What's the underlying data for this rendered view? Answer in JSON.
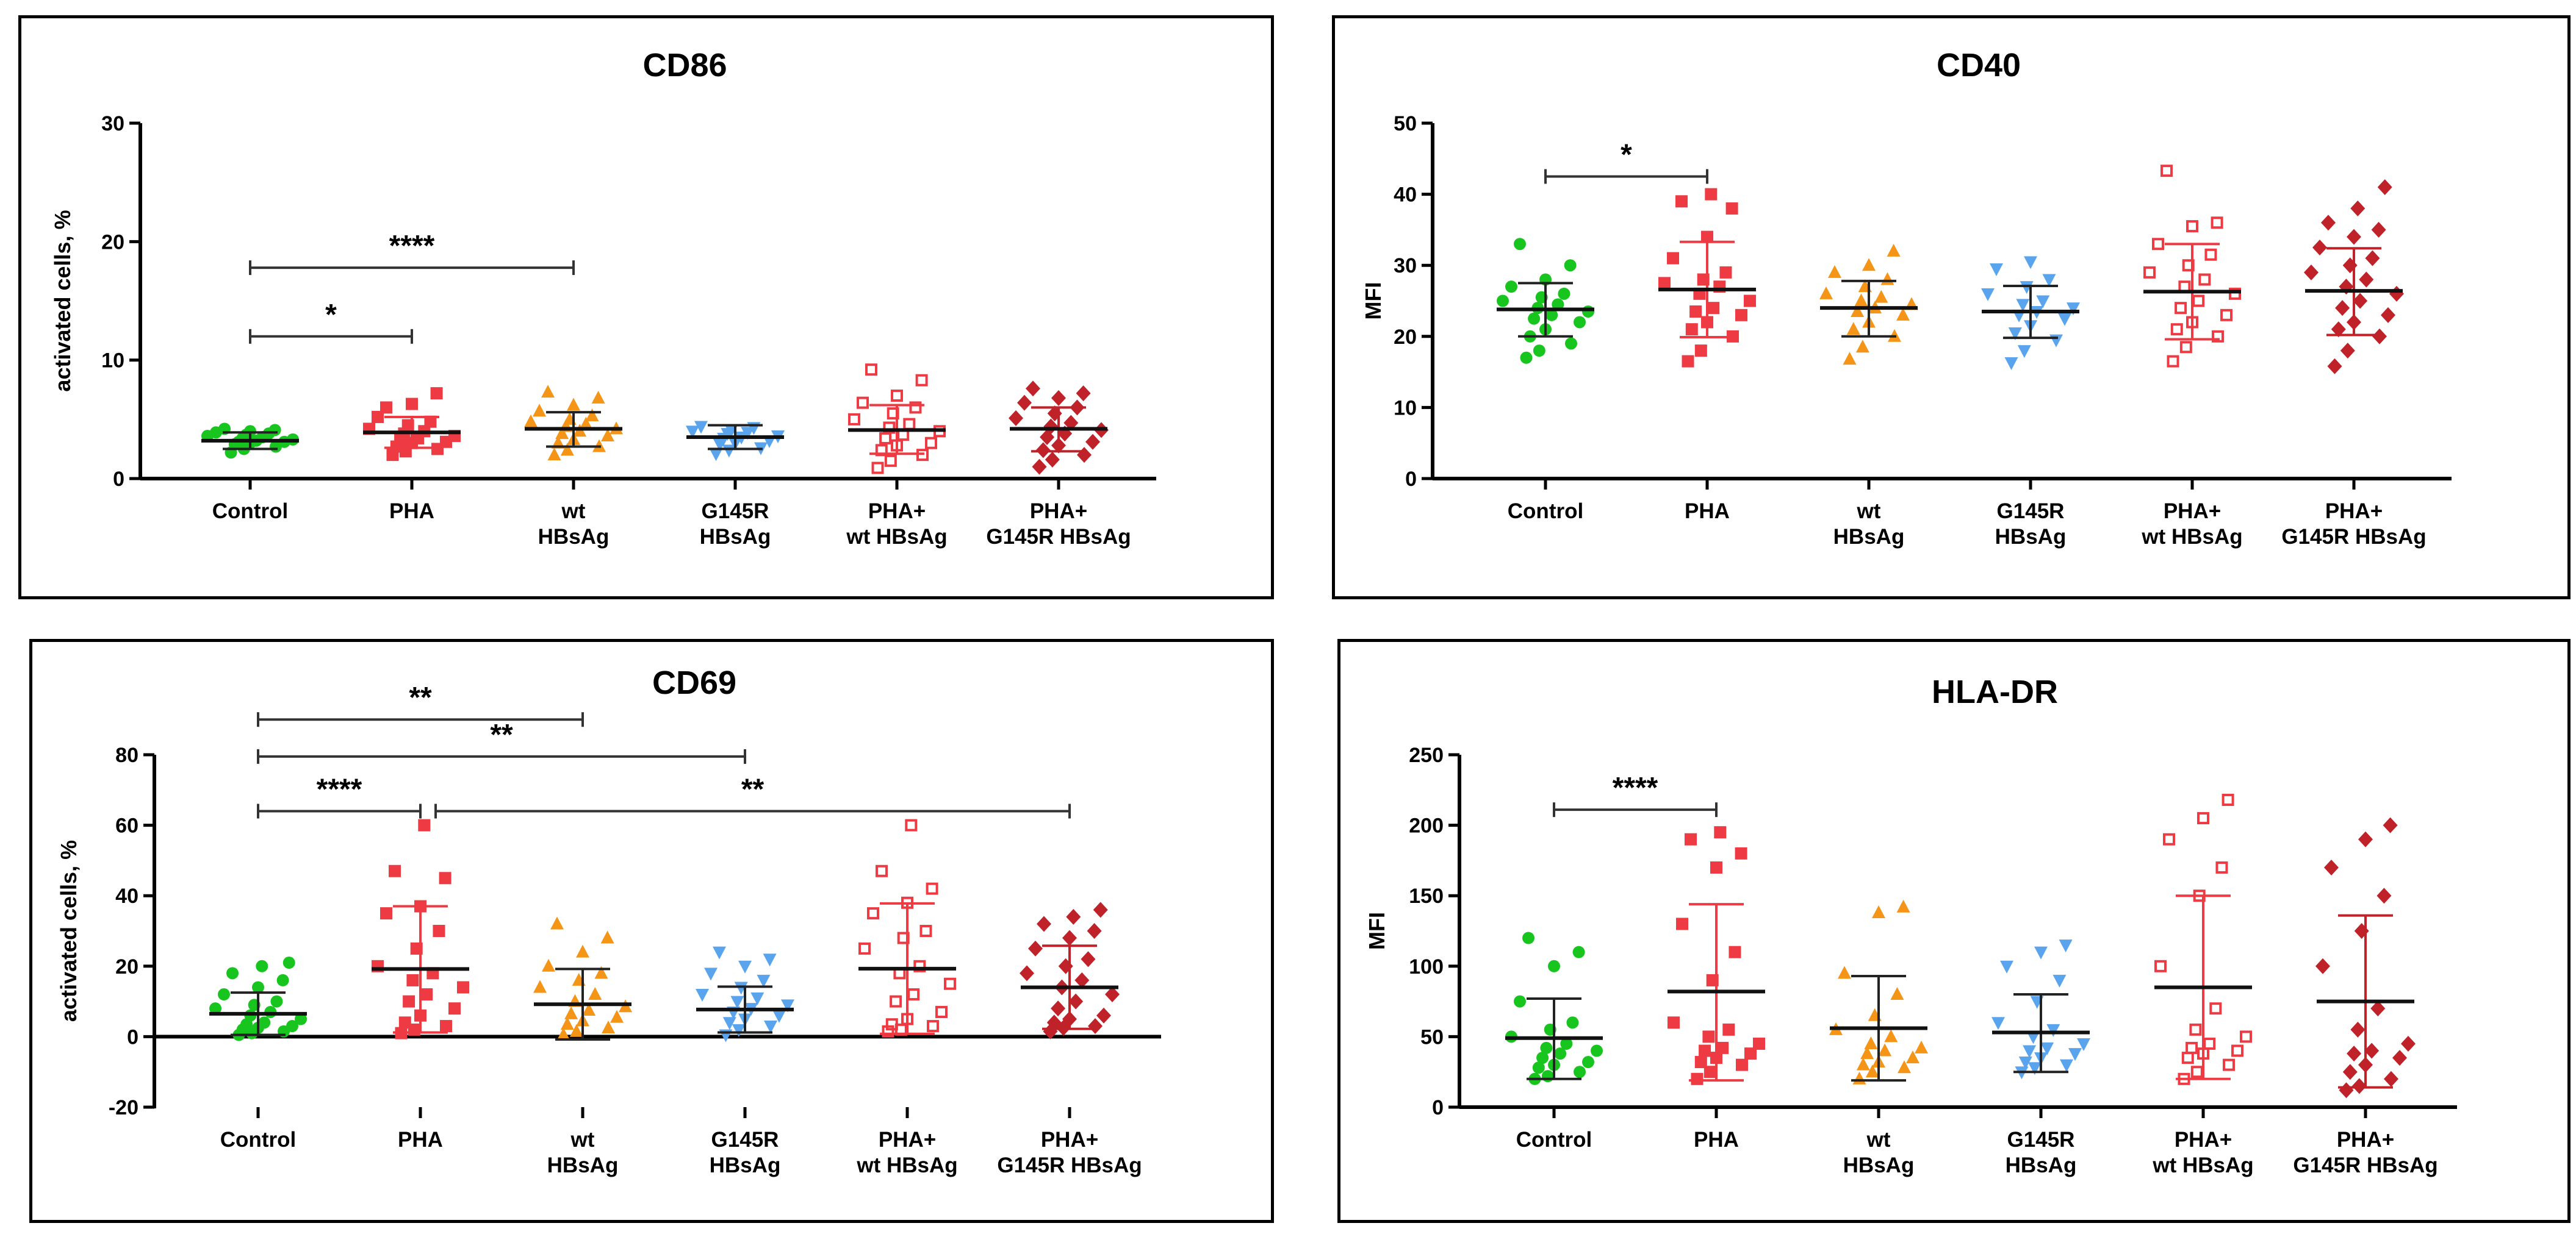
{
  "categories": [
    [
      "Control"
    ],
    [
      "PHA"
    ],
    [
      "wt",
      "HBsAg"
    ],
    [
      "G145R",
      "HBsAg"
    ],
    [
      "PHA+",
      "wt HBsAg"
    ],
    [
      "PHA+",
      "G145R HBsAg"
    ]
  ],
  "group_styles": [
    {
      "color": "#18c51e",
      "marker": "circle"
    },
    {
      "color": "#ee3b43",
      "marker": "square"
    },
    {
      "color": "#f59518",
      "marker": "triangle-up"
    },
    {
      "color": "#5aa4ee",
      "marker": "triangle-down"
    },
    {
      "color": "#ee3b43",
      "marker": "square-open"
    },
    {
      "color": "#c0222a",
      "marker": "diamond"
    }
  ],
  "chart_data": [
    {
      "type": "scatter",
      "title": "CD86",
      "ylabel": "activated cells, %",
      "ylim": [
        0,
        30
      ],
      "yticks": [
        0,
        10,
        20,
        30
      ],
      "series": [
        {
          "name": "Control",
          "points": [
            2.2,
            2.5,
            2.7,
            2.9,
            3.0,
            3.1,
            3.1,
            3.2,
            3.3,
            3.4,
            3.5,
            3.6,
            3.7,
            3.8,
            3.9,
            4.0,
            4.1,
            4.2
          ],
          "mean": 3.2,
          "sd_low": 2.5,
          "sd_high": 3.9
        },
        {
          "name": "PHA",
          "points": [
            2.0,
            2.3,
            2.5,
            2.7,
            3.0,
            3.1,
            3.3,
            3.4,
            3.6,
            3.8,
            4.0,
            4.2,
            4.5,
            4.8,
            5.2,
            6.3,
            7.2,
            6.0
          ],
          "mean": 3.9,
          "sd_low": 2.6,
          "sd_high": 5.2
        },
        {
          "name": "wt HBsAg",
          "points": [
            2.0,
            2.4,
            2.7,
            3.0,
            3.3,
            3.6,
            3.8,
            4.0,
            4.2,
            4.4,
            4.6,
            4.8,
            5.0,
            5.3,
            5.7,
            6.2,
            6.8,
            7.3
          ],
          "mean": 4.2,
          "sd_low": 2.7,
          "sd_high": 5.6
        },
        {
          "name": "G145R HBsAg",
          "points": [
            2.1,
            2.4,
            2.6,
            2.9,
            3.0,
            3.2,
            3.4,
            3.5,
            3.6,
            3.8,
            3.9,
            4.0,
            4.1,
            4.3,
            4.4
          ],
          "mean": 3.5,
          "sd_low": 2.5,
          "sd_high": 4.5
        },
        {
          "name": "PHA+ wt HBsAg",
          "points": [
            0.9,
            1.5,
            2.0,
            2.4,
            2.8,
            3.0,
            3.4,
            3.7,
            4.0,
            4.3,
            4.6,
            5.0,
            5.5,
            6.0,
            6.4,
            7.0,
            8.3,
            9.2
          ],
          "mean": 4.1,
          "sd_low": 2.1,
          "sd_high": 6.2
        },
        {
          "name": "PHA+ G145R HBsAg",
          "points": [
            1.0,
            1.6,
            2.0,
            2.4,
            2.8,
            3.1,
            3.5,
            3.8,
            4.1,
            4.4,
            4.7,
            5.1,
            5.5,
            6.0,
            6.4,
            6.8,
            7.2,
            7.6
          ],
          "mean": 4.2,
          "sd_low": 2.3,
          "sd_high": 6.0
        }
      ],
      "brackets": [
        {
          "from": 0,
          "to": 1,
          "label": "*",
          "y": 12
        },
        {
          "from": 0,
          "to": 2,
          "label": "****",
          "y": 17.8
        }
      ]
    },
    {
      "type": "scatter",
      "title": "CD40",
      "ylabel": "MFI",
      "ylim": [
        0,
        50
      ],
      "yticks": [
        0,
        10,
        20,
        30,
        40,
        50
      ],
      "series": [
        {
          "name": "Control",
          "points": [
            17,
            18,
            19,
            20,
            21,
            22,
            22.5,
            23,
            23.5,
            24,
            24.5,
            25,
            25.5,
            26,
            27,
            28,
            30,
            33
          ],
          "mean": 23.8,
          "sd_low": 20.0,
          "sd_high": 27.5
        },
        {
          "name": "PHA",
          "points": [
            16.5,
            18,
            20,
            21,
            22,
            23,
            23.5,
            24,
            25,
            26,
            27,
            27.5,
            28,
            29,
            31,
            34,
            38,
            39,
            40
          ],
          "mean": 26.6,
          "sd_low": 19.9,
          "sd_high": 33.3
        },
        {
          "name": "wt HBsAg",
          "points": [
            16.8,
            18.5,
            20,
            21,
            22,
            23,
            23.5,
            24,
            24.5,
            25,
            25.5,
            26,
            27,
            28,
            29,
            30,
            32
          ],
          "mean": 24.0,
          "sd_low": 20.0,
          "sd_high": 27.8
        },
        {
          "name": "G145R HBsAg",
          "points": [
            16.3,
            18,
            19.5,
            20.5,
            21.5,
            22.5,
            23,
            23.5,
            24,
            24.5,
            25,
            26,
            27,
            28,
            29.5,
            30.5
          ],
          "mean": 23.5,
          "sd_low": 19.8,
          "sd_high": 27.1
        },
        {
          "name": "PHA+ wt HBsAg",
          "points": [
            16.5,
            18.5,
            20,
            21,
            22,
            23,
            24,
            25,
            26,
            27,
            28,
            29,
            30,
            31.5,
            33,
            35.5,
            36,
            43.3
          ],
          "mean": 26.3,
          "sd_low": 19.6,
          "sd_high": 33.0
        },
        {
          "name": "PHA+ G145R HBsAg",
          "points": [
            15.8,
            18,
            20,
            21,
            22,
            23,
            24,
            25,
            26,
            27,
            28,
            29,
            30,
            31,
            32.5,
            34,
            35,
            36,
            38,
            41
          ],
          "mean": 26.4,
          "sd_low": 20.2,
          "sd_high": 32.4
        }
      ],
      "brackets": [
        {
          "from": 0,
          "to": 1,
          "label": "*",
          "y": 42.5
        }
      ]
    },
    {
      "type": "scatter",
      "title": "CD69",
      "ylabel": "activated cells, %",
      "ylim": [
        -20,
        80
      ],
      "yticks": [
        -20,
        0,
        20,
        40,
        60,
        80
      ],
      "series": [
        {
          "name": "Control",
          "points": [
            0.5,
            1,
            1.5,
            2,
            2.5,
            3,
            3.5,
            4,
            5,
            6,
            7,
            8,
            9,
            10,
            12,
            14,
            16,
            18,
            20,
            21
          ],
          "mean": 6.5,
          "sd_low": 0.5,
          "sd_high": 12.5
        },
        {
          "name": "PHA",
          "points": [
            1,
            2,
            3,
            4,
            6,
            8,
            10,
            12,
            14,
            16,
            18,
            20,
            25,
            30,
            35,
            37,
            45,
            47,
            60
          ],
          "mean": 19.2,
          "sd_low": 1.2,
          "sd_high": 37.0
        },
        {
          "name": "wt HBsAg",
          "points": [
            0.5,
            1.5,
            2.5,
            3.5,
            4.5,
            5.5,
            6.5,
            7.5,
            8.5,
            10,
            12,
            14,
            16,
            18,
            20,
            24,
            28,
            32
          ],
          "mean": 9.2,
          "sd_low": -0.8,
          "sd_high": 19.2
        },
        {
          "name": "G145R HBsAg",
          "points": [
            0.5,
            2,
            3,
            4,
            5,
            6,
            7,
            8,
            9,
            10,
            11,
            12,
            14,
            16,
            18,
            20,
            22,
            24
          ],
          "mean": 7.7,
          "sd_low": 1.2,
          "sd_high": 14.2
        },
        {
          "name": "PHA+ wt HBsAg",
          "points": [
            1.5,
            2,
            3,
            3.5,
            5,
            7,
            10,
            12,
            15,
            18,
            20,
            25,
            28,
            30,
            35,
            38,
            42,
            47,
            60
          ],
          "mean": 19.3,
          "sd_low": 0.8,
          "sd_high": 37.8
        },
        {
          "name": "PHA+ G145R HBsAg",
          "points": [
            1.5,
            2.5,
            3,
            4,
            5,
            6,
            8,
            10,
            12,
            14,
            16,
            18,
            20,
            22,
            25,
            28,
            30,
            32,
            34,
            36
          ],
          "mean": 14.0,
          "sd_low": 2.2,
          "sd_high": 25.8
        }
      ],
      "brackets": [
        {
          "from": 0,
          "to": 1,
          "label": "****",
          "y": 64
        },
        {
          "from": 1,
          "to": 5,
          "label": "**",
          "y": 64
        },
        {
          "from": 0,
          "to": 3,
          "label": "**",
          "y": 79.5
        },
        {
          "from": 0,
          "to": 2,
          "label": "**",
          "y": 90
        }
      ]
    },
    {
      "type": "scatter",
      "title": "HLA-DR",
      "ylabel": "MFI",
      "ylim": [
        0,
        250
      ],
      "yticks": [
        0,
        50,
        100,
        150,
        200,
        250
      ],
      "series": [
        {
          "name": "Control",
          "points": [
            20,
            22,
            25,
            28,
            30,
            32,
            35,
            38,
            40,
            42,
            45,
            50,
            55,
            60,
            75,
            100,
            110,
            120
          ],
          "mean": 49,
          "sd_low": 20,
          "sd_high": 77
        },
        {
          "name": "PHA",
          "points": [
            20,
            25,
            30,
            32,
            35,
            38,
            40,
            42,
            45,
            50,
            55,
            60,
            90,
            110,
            130,
            170,
            180,
            190,
            195
          ],
          "mean": 82,
          "sd_low": 19,
          "sd_high": 144
        },
        {
          "name": "wt HBsAg",
          "points": [
            20,
            25,
            28,
            30,
            32,
            35,
            38,
            40,
            42,
            45,
            50,
            55,
            65,
            80,
            95,
            138,
            142
          ],
          "mean": 56,
          "sd_low": 19,
          "sd_high": 93
        },
        {
          "name": "G145R HBsAg",
          "points": [
            25,
            28,
            30,
            32,
            35,
            38,
            40,
            42,
            45,
            50,
            55,
            60,
            75,
            90,
            100,
            110,
            115
          ],
          "mean": 53,
          "sd_low": 25,
          "sd_high": 80
        },
        {
          "name": "PHA+ wt HBsAg",
          "points": [
            20,
            25,
            30,
            35,
            38,
            40,
            42,
            45,
            50,
            55,
            70,
            100,
            150,
            170,
            190,
            205,
            218
          ],
          "mean": 85,
          "sd_low": 20,
          "sd_high": 150
        },
        {
          "name": "PHA+ G145R HBsAg",
          "points": [
            12,
            15,
            20,
            25,
            30,
            35,
            38,
            40,
            45,
            55,
            70,
            100,
            125,
            150,
            170,
            190,
            200
          ],
          "mean": 75,
          "sd_low": 14,
          "sd_high": 136
        }
      ],
      "brackets": [
        {
          "from": 0,
          "to": 1,
          "label": "****",
          "y": 211
        }
      ]
    }
  ]
}
